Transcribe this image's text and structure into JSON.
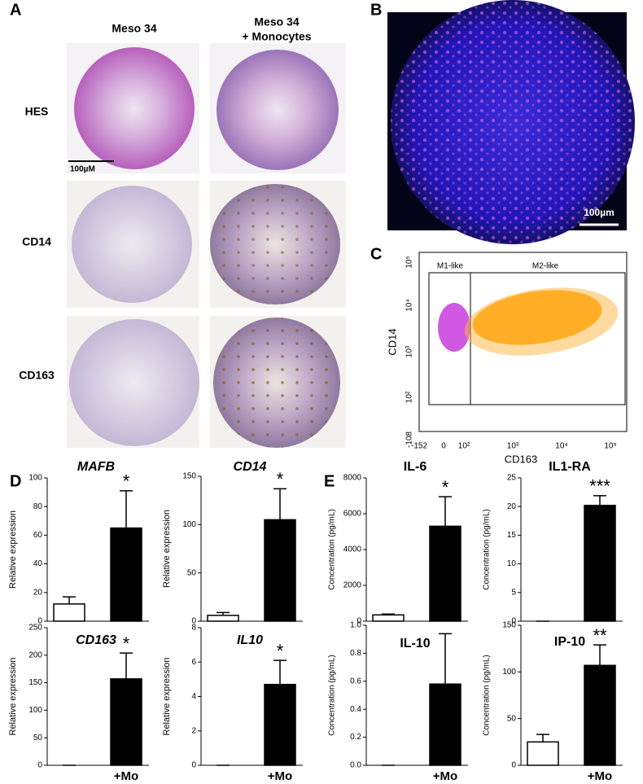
{
  "panels": {
    "A": {
      "label": "A",
      "columns": [
        "Meso 34",
        "Meso 34",
        "+ Monocytes"
      ],
      "rows": [
        "HES",
        "CD14",
        "CD163"
      ],
      "scale_bar": "100µM"
    },
    "B": {
      "label": "B",
      "scale_bar": "100µm"
    },
    "C": {
      "label": "C",
      "x_label": "CD163",
      "y_label": "CD14",
      "gates": [
        "M1-like",
        "M2-like"
      ],
      "xticks": [
        -152,
        0,
        {
          "value": 100,
          "label": "10²"
        },
        {
          "value": 1000,
          "label": "10³"
        },
        {
          "value": 10000,
          "label": "10⁴"
        },
        {
          "value": 100000,
          "label": "10⁵"
        }
      ],
      "yticks": [
        -108,
        {
          "value": 100,
          "label": "10²"
        },
        {
          "value": 1000,
          "label": "10³"
        },
        {
          "value": 10000,
          "label": "10⁴"
        },
        {
          "value": 100000,
          "label": "10⁵"
        }
      ]
    },
    "D": {
      "label": "D"
    },
    "E": {
      "label": "E"
    }
  },
  "chart_data": [
    {
      "type": "bar",
      "title": "MAFB",
      "italic": true,
      "y_label": "Relative expression",
      "categories": [
        null,
        null
      ],
      "values": [
        12,
        65
      ],
      "errors": [
        5,
        26
      ],
      "colors": [
        "#ffffff",
        "#000000"
      ],
      "annotation": "*",
      "ylim": [
        0,
        100
      ],
      "yticks": [
        0,
        20,
        40,
        60,
        80,
        100
      ]
    },
    {
      "type": "bar",
      "title": "CD14",
      "italic": true,
      "y_label": "Relative expression",
      "categories": [
        null,
        null
      ],
      "values": [
        6,
        105
      ],
      "errors": [
        3,
        32
      ],
      "colors": [
        "#ffffff",
        "#000000"
      ],
      "annotation": "*",
      "ylim": [
        0,
        150
      ],
      "yticks": [
        0,
        50,
        100,
        150
      ]
    },
    {
      "type": "bar",
      "title": "CD163",
      "italic": true,
      "y_label": "Relative expression",
      "categories": [
        null,
        "+Mo"
      ],
      "values": [
        0,
        157
      ],
      "errors": [
        0,
        47
      ],
      "colors": [
        "#ffffff",
        "#000000"
      ],
      "annotation": "*",
      "ylim": [
        0,
        250
      ],
      "yticks": [
        0,
        50,
        100,
        150,
        200,
        250
      ]
    },
    {
      "type": "bar",
      "title": "IL10",
      "italic": true,
      "y_label": "Relative expression",
      "categories": [
        null,
        "+Mo"
      ],
      "values": [
        0,
        4.7
      ],
      "errors": [
        0,
        1.4
      ],
      "colors": [
        "#ffffff",
        "#000000"
      ],
      "annotation": "*",
      "ylim": [
        0,
        8
      ],
      "yticks": [
        0,
        2,
        4,
        6,
        8
      ]
    },
    {
      "type": "bar",
      "title": "IL-6",
      "italic": false,
      "y_label": "Concentration (pg/mL)",
      "categories": [
        null,
        null
      ],
      "values": [
        350,
        5300
      ],
      "errors": [
        50,
        1650
      ],
      "colors": [
        "#ffffff",
        "#000000"
      ],
      "annotation": "*",
      "ylim": [
        0,
        8000
      ],
      "yticks": [
        0,
        2000,
        4000,
        6000,
        8000
      ]
    },
    {
      "type": "bar",
      "title": "IL1-RA",
      "italic": false,
      "y_label": "Concentration (pg/mL)",
      "categories": [
        null,
        null
      ],
      "values": [
        0,
        20.2
      ],
      "errors": [
        0,
        1.7
      ],
      "colors": [
        "#ffffff",
        "#000000"
      ],
      "annotation": "***",
      "ylim": [
        0,
        25
      ],
      "yticks": [
        0,
        5,
        10,
        15,
        20,
        25
      ]
    },
    {
      "type": "bar",
      "title": "IL-10",
      "italic": false,
      "y_label": "Concentration (pg/mL)",
      "categories": [
        null,
        "+Mo"
      ],
      "values": [
        0,
        0.58
      ],
      "errors": [
        0,
        0.36
      ],
      "colors": [
        "#ffffff",
        "#000000"
      ],
      "annotation": null,
      "ylim": [
        0,
        1.0
      ],
      "yticks": [
        {
          "value": 0,
          "label": "0.0"
        },
        {
          "value": 0.2,
          "label": "0.2"
        },
        {
          "value": 0.4,
          "label": "0.4"
        },
        {
          "value": 0.6,
          "label": "0.6"
        },
        {
          "value": 0.8,
          "label": "0.8"
        },
        {
          "value": 1.0,
          "label": "1.0"
        }
      ]
    },
    {
      "type": "bar",
      "title": "IP-10",
      "italic": false,
      "y_label": "Concentration (pg/mL)",
      "categories": [
        null,
        "+Mo"
      ],
      "values": [
        25,
        107
      ],
      "errors": [
        8,
        22
      ],
      "colors": [
        "#ffffff",
        "#000000"
      ],
      "annotation": "**",
      "ylim": [
        0,
        150
      ],
      "yticks": [
        0,
        50,
        100,
        150
      ]
    }
  ]
}
